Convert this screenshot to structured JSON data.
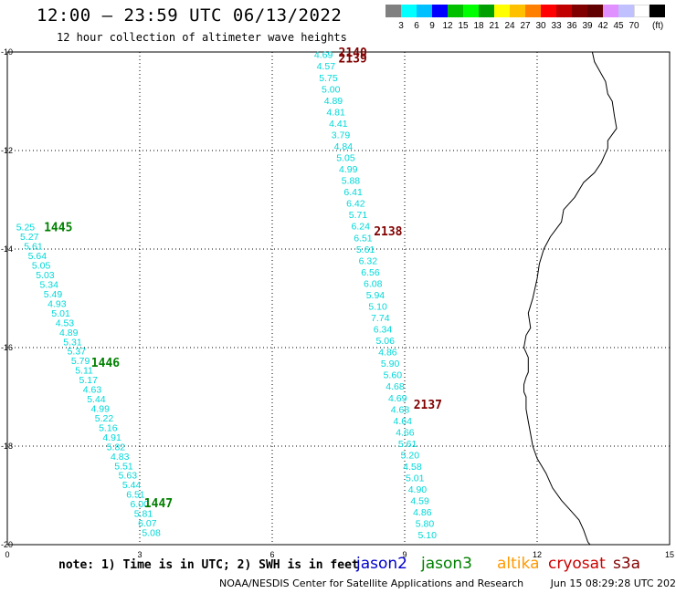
{
  "header": {
    "title": "12:00 – 23:59 UTC 06/13/2022",
    "subtitle": "12 hour collection of altimeter wave heights"
  },
  "color_scale": {
    "swatches": [
      "#808080",
      "#00ffff",
      "#00c0ff",
      "#0000ff",
      "#00c000",
      "#00ff00",
      "#00a000",
      "#ffff00",
      "#ffc000",
      "#ff8000",
      "#ff0000",
      "#c00000",
      "#800000",
      "#600000",
      "#e090ff",
      "#c0c0ff",
      "#ffffff",
      "#000000"
    ],
    "labels": [
      "3",
      "6",
      "9",
      "12",
      "15",
      "18",
      "21",
      "24",
      "27",
      "30",
      "33",
      "36",
      "39",
      "42",
      "45",
      "70"
    ],
    "unit": "(ft)"
  },
  "chart_data": {
    "type": "map",
    "axes": {
      "x_ticks": [
        "0",
        "3",
        "6",
        "9",
        "12",
        "15"
      ],
      "y_ticks": [
        "-10",
        "-12",
        "-14",
        "-16",
        "-18",
        "-20"
      ],
      "xlim": [
        0,
        15
      ],
      "ylim": [
        -20,
        -10
      ]
    },
    "pass_labels": [
      {
        "text": "2140",
        "lon": 7.5,
        "lat": -10.0,
        "color": "#800000"
      },
      {
        "text": "2139",
        "lon": 7.5,
        "lat": -10.12,
        "color": "#800000"
      },
      {
        "text": "2138",
        "lon": 8.3,
        "lat": -13.63,
        "color": "#800000"
      },
      {
        "text": "2137",
        "lon": 9.2,
        "lat": -17.15,
        "color": "#800000"
      },
      {
        "text": "1445",
        "lon": 0.83,
        "lat": -13.55,
        "color": "#008000"
      },
      {
        "text": "1446",
        "lon": 1.9,
        "lat": -16.3,
        "color": "#008000"
      },
      {
        "text": "1447",
        "lon": 3.1,
        "lat": -19.15,
        "color": "#008000"
      }
    ],
    "tracks": [
      {
        "name": "",
        "start": {
          "lon": 6.95,
          "lat": -10.05
        },
        "end": {
          "lon": 9.3,
          "lat": -19.8
        },
        "values": [
          "4.69",
          "4.57",
          "5.75",
          "5.00",
          "4.89",
          "4.81",
          "4.41",
          "3.79",
          "4.84",
          "5.05",
          "4.99",
          "5.88",
          "6.41",
          "6.42",
          "5.71",
          "6.24",
          "6.51",
          "5.61",
          "6.32",
          "6.56",
          "6.08",
          "5.94",
          "5.10",
          "7.74",
          "6.34",
          "5.06",
          "4.86",
          "5.90",
          "5.60",
          "4.68",
          "4.69",
          "4.68",
          "4.64",
          "4.66",
          "5.61",
          "5.20",
          "4.58",
          "5.01",
          "4.90",
          "4.59",
          "4.86",
          "5.80",
          "5.10"
        ]
      },
      {
        "name": "",
        "start": {
          "lon": 0.2,
          "lat": -13.55
        },
        "end": {
          "lon": 3.05,
          "lat": -19.75
        },
        "values": [
          "5.25",
          "5.27",
          "5.61",
          "5.64",
          "5.05",
          "5.03",
          "5.34",
          "5.49",
          "4.93",
          "5.01",
          "4.53",
          "4.89",
          "5.31",
          "5.37",
          "5.79",
          "5.11",
          "5.17",
          "4.63",
          "5.44",
          "4.99",
          "5.22",
          "5.16",
          "4.91",
          "5.82",
          "4.83",
          "5.51",
          "5.63",
          "5.44",
          "6.51",
          "6.00",
          "5.81",
          "6.07",
          "5.08"
        ]
      }
    ],
    "coastline_lonlat": [
      [
        13.25,
        -10.0
      ],
      [
        13.3,
        -10.2
      ],
      [
        13.55,
        -10.6
      ],
      [
        13.6,
        -10.85
      ],
      [
        13.7,
        -11.0
      ],
      [
        13.75,
        -11.3
      ],
      [
        13.8,
        -11.55
      ],
      [
        13.6,
        -11.8
      ],
      [
        13.6,
        -11.95
      ],
      [
        13.45,
        -12.25
      ],
      [
        13.3,
        -12.45
      ],
      [
        13.05,
        -12.65
      ],
      [
        12.85,
        -12.95
      ],
      [
        12.6,
        -13.2
      ],
      [
        12.55,
        -13.45
      ],
      [
        12.3,
        -13.75
      ],
      [
        12.15,
        -14.0
      ],
      [
        12.05,
        -14.3
      ],
      [
        12.0,
        -14.6
      ],
      [
        11.9,
        -15.0
      ],
      [
        11.8,
        -15.3
      ],
      [
        11.85,
        -15.6
      ],
      [
        11.75,
        -15.75
      ],
      [
        11.7,
        -16.0
      ],
      [
        11.8,
        -16.2
      ],
      [
        11.8,
        -16.5
      ],
      [
        11.75,
        -16.6
      ],
      [
        11.7,
        -16.75
      ],
      [
        11.7,
        -16.9
      ],
      [
        11.75,
        -17.0
      ],
      [
        11.75,
        -17.25
      ],
      [
        11.8,
        -17.5
      ],
      [
        11.85,
        -17.75
      ],
      [
        11.9,
        -18.0
      ],
      [
        12.0,
        -18.25
      ],
      [
        12.2,
        -18.55
      ],
      [
        12.35,
        -18.85
      ],
      [
        12.55,
        -19.1
      ],
      [
        12.75,
        -19.3
      ],
      [
        12.95,
        -19.5
      ],
      [
        13.05,
        -19.7
      ],
      [
        13.15,
        -19.95
      ],
      [
        13.2,
        -20.0
      ]
    ]
  },
  "legend": {
    "note": "note: 1) Time is in UTC; 2) SWH is in feet",
    "satellites": [
      {
        "name": "jason2",
        "color": "#0000cc"
      },
      {
        "name": "jason3",
        "color": "#008000"
      },
      {
        "name": "altika",
        "color": "#ff9900"
      },
      {
        "name": "cryosat",
        "color": "#cc0000"
      },
      {
        "name": "s3a",
        "color": "#800000"
      }
    ]
  },
  "footer": {
    "credit": "NOAA/NESDIS Center for Satellite Applications and Research",
    "timestamp": "Jun 15 08:29:28 UTC 2022"
  }
}
